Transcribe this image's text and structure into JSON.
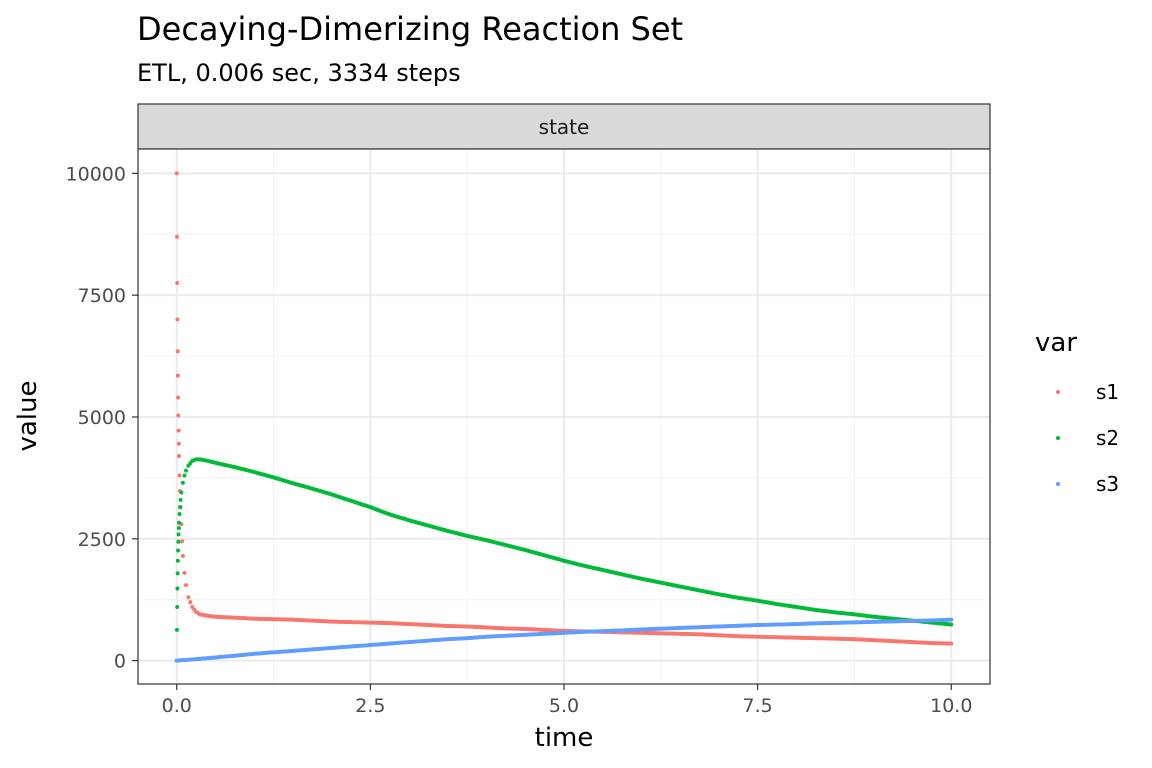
{
  "chart_data": {
    "type": "scatter",
    "title": "Decaying-Dimerizing Reaction Set",
    "subtitle": "ETL, 0.006 sec, 3334 steps",
    "facet_label": "state",
    "xlabel": "time",
    "ylabel": "value",
    "xlim": [
      -0.5,
      10.5
    ],
    "ylim": [
      -480,
      10500
    ],
    "x_ticks": [
      0,
      2.5,
      5,
      7.5,
      10
    ],
    "x_tick_labels": [
      "0.0",
      "2.5",
      "5.0",
      "7.5",
      "10.0"
    ],
    "y_ticks": [
      0,
      2500,
      5000,
      7500,
      10000
    ],
    "y_tick_labels": [
      "0",
      "2500",
      "5000",
      "7500",
      "10000"
    ],
    "grid": true,
    "legend": {
      "title": "var",
      "position": "right"
    },
    "series": [
      {
        "name": "s1",
        "color": "#F8766D",
        "x": [
          0.0,
          0.003,
          0.006,
          0.009,
          0.012,
          0.015,
          0.018,
          0.021,
          0.024,
          0.027,
          0.03,
          0.036,
          0.042,
          0.05,
          0.06,
          0.07,
          0.08,
          0.1,
          0.12,
          0.15,
          0.2,
          0.25,
          0.3,
          0.4,
          0.5,
          0.75,
          1.0,
          1.25,
          1.5,
          1.75,
          2.0,
          2.25,
          2.5,
          2.75,
          3.0,
          3.25,
          3.5,
          3.75,
          4.0,
          4.25,
          4.5,
          4.75,
          5.0,
          5.25,
          5.5,
          5.75,
          6.0,
          6.25,
          6.5,
          6.75,
          7.0,
          7.25,
          7.5,
          7.75,
          8.0,
          8.25,
          8.5,
          8.75,
          9.0,
          9.25,
          9.5,
          9.75,
          10.0
        ],
        "y": [
          10000,
          8700,
          7750,
          7000,
          6350,
          5850,
          5400,
          5030,
          4720,
          4450,
          4200,
          3800,
          3480,
          3150,
          2800,
          2450,
          2150,
          1800,
          1550,
          1300,
          1100,
          1000,
          950,
          920,
          900,
          880,
          860,
          850,
          840,
          820,
          800,
          790,
          780,
          770,
          750,
          730,
          710,
          700,
          680,
          660,
          650,
          630,
          610,
          600,
          590,
          580,
          570,
          560,
          550,
          540,
          520,
          500,
          490,
          480,
          470,
          460,
          450,
          440,
          420,
          400,
          380,
          360,
          350
        ]
      },
      {
        "name": "s2",
        "color": "#00BA38",
        "x": [
          0.0,
          0.003,
          0.006,
          0.009,
          0.012,
          0.015,
          0.018,
          0.021,
          0.024,
          0.027,
          0.03,
          0.036,
          0.042,
          0.05,
          0.06,
          0.08,
          0.1,
          0.12,
          0.15,
          0.2,
          0.25,
          0.3,
          0.4,
          0.5,
          0.75,
          1.0,
          1.25,
          1.5,
          1.75,
          2.0,
          2.25,
          2.5,
          2.75,
          3.0,
          3.25,
          3.5,
          3.75,
          4.0,
          4.25,
          4.5,
          4.75,
          5.0,
          5.25,
          5.5,
          5.75,
          6.0,
          6.25,
          6.5,
          6.75,
          7.0,
          7.25,
          7.5,
          7.75,
          8.0,
          8.25,
          8.5,
          8.75,
          9.0,
          9.25,
          9.5,
          9.75,
          10.0
        ],
        "y": [
          0,
          630,
          1100,
          1480,
          1790,
          2050,
          2260,
          2440,
          2590,
          2720,
          2830,
          3010,
          3150,
          3300,
          3450,
          3650,
          3800,
          3900,
          4000,
          4100,
          4130,
          4130,
          4100,
          4060,
          3970,
          3870,
          3760,
          3640,
          3530,
          3410,
          3280,
          3150,
          3000,
          2880,
          2770,
          2660,
          2560,
          2470,
          2370,
          2270,
          2160,
          2050,
          1950,
          1860,
          1770,
          1680,
          1600,
          1520,
          1440,
          1360,
          1290,
          1230,
          1160,
          1100,
          1040,
          990,
          950,
          900,
          860,
          820,
          780,
          740
        ]
      },
      {
        "name": "s3",
        "color": "#619CFF",
        "x": [
          0.0,
          0.25,
          0.5,
          0.75,
          1.0,
          1.25,
          1.5,
          1.75,
          2.0,
          2.25,
          2.5,
          2.75,
          3.0,
          3.25,
          3.5,
          3.75,
          4.0,
          4.25,
          4.5,
          4.75,
          5.0,
          5.25,
          5.5,
          5.75,
          6.0,
          6.25,
          6.5,
          6.75,
          7.0,
          7.25,
          7.5,
          7.75,
          8.0,
          8.25,
          8.5,
          8.75,
          9.0,
          9.25,
          9.5,
          9.75,
          10.0
        ],
        "y": [
          0,
          30,
          65,
          100,
          140,
          170,
          200,
          230,
          260,
          290,
          320,
          350,
          380,
          410,
          440,
          460,
          490,
          510,
          530,
          550,
          570,
          590,
          605,
          620,
          640,
          655,
          670,
          685,
          700,
          715,
          730,
          740,
          750,
          765,
          775,
          785,
          795,
          805,
          815,
          825,
          840
        ]
      }
    ]
  }
}
